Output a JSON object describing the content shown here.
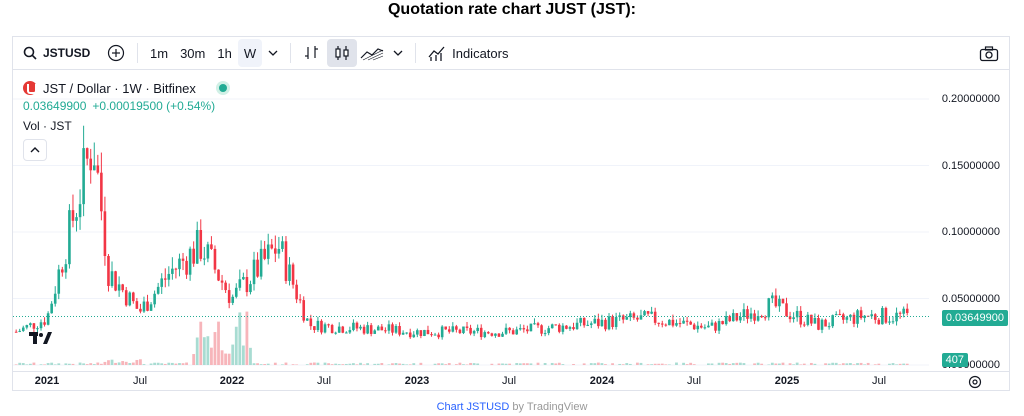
{
  "page": {
    "title": "Quotation rate chart JUST (JST):"
  },
  "toolbar": {
    "symbol": "JSTUSD",
    "intervals": [
      "1m",
      "30m",
      "1h",
      "W"
    ],
    "active_interval": "W",
    "indicators_label": "Indicators",
    "icons": [
      "search-icon",
      "add-symbol-icon",
      "chevron-down-icon",
      "bar-style-icon",
      "candle-style-icon",
      "area-style-icon",
      "indicators-icon",
      "camera-icon"
    ]
  },
  "legend": {
    "title": "JST / Dollar · 1W · Bitfinex",
    "price": "0.03649900",
    "change": "+0.00019500 (+0.54%)",
    "volume_label": "Vol · JST"
  },
  "price_axis": {
    "labels": [
      "0.20000000",
      "0.15000000",
      "0.10000000",
      "0.05000000",
      "0.00000000"
    ],
    "current_price": "0.03649900",
    "current_volume": "407"
  },
  "time_axis": {
    "labels": [
      {
        "text": "2021",
        "bold": true
      },
      {
        "text": "Jul",
        "bold": false
      },
      {
        "text": "2022",
        "bold": true
      },
      {
        "text": "Jul",
        "bold": false
      },
      {
        "text": "2023",
        "bold": true
      },
      {
        "text": "Jul",
        "bold": false
      },
      {
        "text": "2024",
        "bold": true
      },
      {
        "text": "Jul",
        "bold": false
      },
      {
        "text": "2025",
        "bold": true
      },
      {
        "text": "Jul",
        "bold": false
      }
    ]
  },
  "footer": {
    "link_text": "Chart JSTUSD",
    "suffix": "by TradingView"
  },
  "colors": {
    "up": "#22ab94",
    "down": "#f23645",
    "up_volume": "#a8dcd2",
    "down_volume": "#f7b5ba",
    "grid": "#f0f3fa"
  },
  "chart_data": {
    "type": "candlestick",
    "title": "JST / Dollar · 1W · Bitfinex",
    "y_axis_ticks": [
      0.2,
      0.15,
      0.1,
      0.05,
      0
    ],
    "ylim": [
      0,
      0.2
    ],
    "x_ticks": [
      "2021",
      "Jul",
      "2022",
      "Jul",
      "2023",
      "Jul",
      "2024",
      "Jul",
      "2025",
      "Jul"
    ],
    "last_price": 0.036499,
    "last_volume": 407,
    "approximate_path": [
      {
        "date": "2020-11",
        "close": 0.025
      },
      {
        "date": "2021-01",
        "close": 0.035
      },
      {
        "date": "2021-02",
        "close": 0.08
      },
      {
        "date": "2021-04",
        "close": 0.17
      },
      {
        "date": "2021-05",
        "close": 0.07
      },
      {
        "date": "2021-07",
        "close": 0.04
      },
      {
        "date": "2021-09",
        "close": 0.07
      },
      {
        "date": "2021-11",
        "close": 0.09
      },
      {
        "date": "2022-01",
        "close": 0.05
      },
      {
        "date": "2022-04",
        "close": 0.09
      },
      {
        "date": "2022-06",
        "close": 0.03
      },
      {
        "date": "2023-01",
        "close": 0.025
      },
      {
        "date": "2023-07",
        "close": 0.025
      },
      {
        "date": "2024-01",
        "close": 0.032
      },
      {
        "date": "2024-04",
        "close": 0.035
      },
      {
        "date": "2024-08",
        "close": 0.028
      },
      {
        "date": "2024-12",
        "close": 0.045
      },
      {
        "date": "2025-03",
        "close": 0.03
      },
      {
        "date": "2025-06",
        "close": 0.037
      },
      {
        "date": "2025-09",
        "close": 0.0365
      }
    ]
  }
}
